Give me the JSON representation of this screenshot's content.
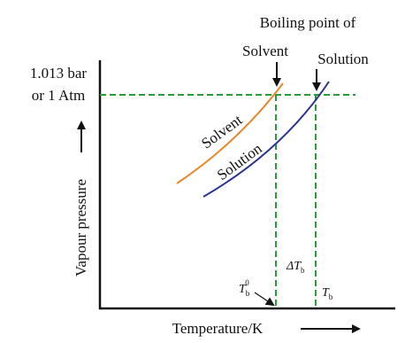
{
  "title": {
    "line1": "Boiling point of",
    "solvent": "Solvent",
    "solution": "Solution"
  },
  "pressure_label": {
    "line1": "1.013 bar",
    "line2": "or 1 Atm"
  },
  "axes": {
    "y": "Vapour pressure",
    "x": "Temperature/K"
  },
  "curves": {
    "solvent": "Solvent",
    "solution": "Solution"
  },
  "markers": {
    "solvent_bp": {
      "main": "T",
      "sub": "b",
      "sup": "0"
    },
    "elevation": {
      "main": "ΔT",
      "sub": "b"
    },
    "solution_bp": {
      "main": "T",
      "sub": "b"
    }
  }
}
